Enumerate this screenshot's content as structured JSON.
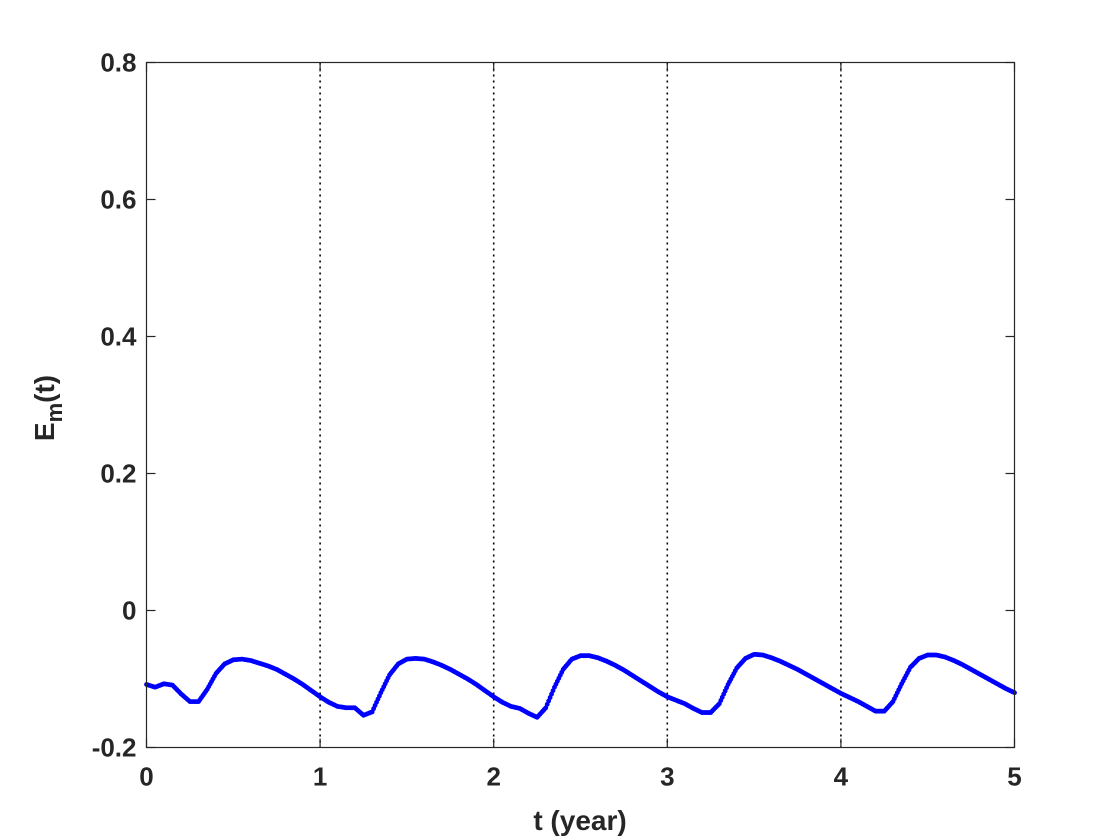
{
  "chart_data": {
    "type": "scatter",
    "xlabel": "t (year)",
    "ylabel": {
      "base": "E",
      "sub": "m",
      "suffix": "(t)"
    },
    "xlim": [
      0,
      5
    ],
    "ylim": [
      -0.2,
      0.8
    ],
    "xticks": [
      0,
      1,
      2,
      3,
      4,
      5
    ],
    "xtick_labels": [
      "0",
      "1",
      "2",
      "3",
      "4",
      "5"
    ],
    "yticks": [
      -0.2,
      0,
      0.2,
      0.4,
      0.6,
      0.8
    ],
    "ytick_labels": [
      "-0.2",
      "0",
      "0.2",
      "0.4",
      "0.6",
      "0.8"
    ],
    "grid": false,
    "vertical_reference_lines": [
      1,
      2,
      3,
      4
    ],
    "marker_color": "#0000ff",
    "reference_line_color": "#000000",
    "series": [
      {
        "x": [
          0.0,
          0.05,
          0.1,
          0.15,
          0.2,
          0.25,
          0.3,
          0.35,
          0.4,
          0.45,
          0.5,
          0.55,
          0.6,
          0.65,
          0.7,
          0.75,
          0.8,
          0.85,
          0.9,
          0.95,
          1.0,
          1.05,
          1.1,
          1.15,
          1.2,
          1.25,
          1.3,
          1.35,
          1.4,
          1.45,
          1.5,
          1.55,
          1.6,
          1.65,
          1.7,
          1.75,
          1.8,
          1.85,
          1.9,
          1.95,
          2.0,
          2.05,
          2.1,
          2.15,
          2.2,
          2.25,
          2.3,
          2.35,
          2.4,
          2.45,
          2.5,
          2.55,
          2.6,
          2.65,
          2.7,
          2.75,
          2.8,
          2.85,
          2.9,
          2.95,
          3.0,
          3.05,
          3.1,
          3.15,
          3.2,
          3.25,
          3.3,
          3.35,
          3.4,
          3.45,
          3.5,
          3.55,
          3.6,
          3.65,
          3.7,
          3.75,
          3.8,
          3.85,
          3.9,
          3.95,
          4.0,
          4.05,
          4.1,
          4.15,
          4.2,
          4.25,
          4.3,
          4.35,
          4.4,
          4.45,
          4.5,
          4.55,
          4.6,
          4.65,
          4.7,
          4.75,
          4.8,
          4.85,
          4.9,
          4.95,
          5.0
        ],
        "y": [
          -0.108,
          -0.112,
          -0.107,
          -0.109,
          -0.122,
          -0.133,
          -0.133,
          -0.115,
          -0.092,
          -0.078,
          -0.072,
          -0.071,
          -0.073,
          -0.077,
          -0.081,
          -0.086,
          -0.093,
          -0.1,
          -0.108,
          -0.117,
          -0.126,
          -0.134,
          -0.14,
          -0.142,
          -0.142,
          -0.153,
          -0.148,
          -0.12,
          -0.094,
          -0.078,
          -0.071,
          -0.07,
          -0.071,
          -0.075,
          -0.08,
          -0.086,
          -0.093,
          -0.1,
          -0.108,
          -0.117,
          -0.126,
          -0.134,
          -0.14,
          -0.143,
          -0.15,
          -0.156,
          -0.142,
          -0.112,
          -0.086,
          -0.071,
          -0.066,
          -0.066,
          -0.069,
          -0.074,
          -0.08,
          -0.087,
          -0.095,
          -0.103,
          -0.111,
          -0.119,
          -0.126,
          -0.131,
          -0.136,
          -0.143,
          -0.149,
          -0.149,
          -0.136,
          -0.108,
          -0.084,
          -0.07,
          -0.064,
          -0.065,
          -0.069,
          -0.074,
          -0.08,
          -0.086,
          -0.093,
          -0.1,
          -0.107,
          -0.114,
          -0.121,
          -0.127,
          -0.133,
          -0.14,
          -0.147,
          -0.147,
          -0.133,
          -0.107,
          -0.083,
          -0.07,
          -0.065,
          -0.065,
          -0.068,
          -0.073,
          -0.079,
          -0.086,
          -0.093,
          -0.1,
          -0.107,
          -0.114,
          -0.12
        ]
      }
    ]
  }
}
